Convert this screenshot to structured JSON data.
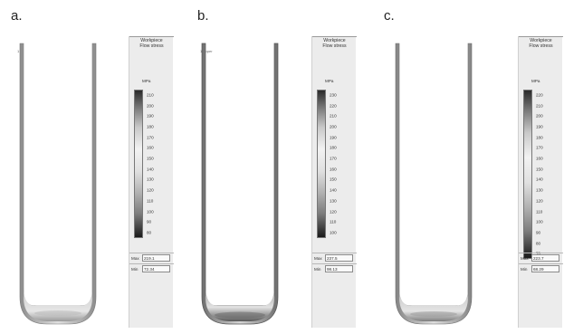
{
  "panels": [
    {
      "label": "a.",
      "corner_mark": "1",
      "legend": {
        "title": "Workpiece",
        "subtitle": "Flow stress",
        "unit": "MPa",
        "ticks": [
          "210",
          "200",
          "190",
          "180",
          "170",
          "160",
          "150",
          "140",
          "130",
          "120",
          "110",
          "100",
          "90",
          "80"
        ],
        "max_label": "Max",
        "max_value": "219.1",
        "min_label": "Min",
        "min_value": "72.34"
      }
    },
    {
      "label": "b.",
      "corner_mark": "1 upper",
      "legend": {
        "title": "Workpiece",
        "subtitle": "Flow stress",
        "unit": "MPa",
        "ticks": [
          "230",
          "220",
          "210",
          "200",
          "190",
          "180",
          "170",
          "160",
          "150",
          "140",
          "130",
          "120",
          "110",
          "100"
        ],
        "max_label": "Max",
        "max_value": "237.5",
        "min_label": "Min",
        "min_value": "98.13"
      }
    },
    {
      "label": "c.",
      "corner_mark": "",
      "legend": {
        "title": "Workpiece",
        "subtitle": "Flow stress",
        "unit": "MPa",
        "ticks": [
          "220",
          "210",
          "200",
          "190",
          "180",
          "170",
          "160",
          "150",
          "140",
          "130",
          "120",
          "110",
          "100",
          "90",
          "80",
          "70"
        ],
        "max_label": "Max",
        "max_value": "223.7",
        "min_label": "Min",
        "min_value": "68.29"
      }
    }
  ],
  "colors": {
    "vessel_wall": "#bdbdbd",
    "vessel_bottom_light": "#d9d9d9",
    "vessel_bottom_dark": "#6f6f6f",
    "legend_bg": "#ececec",
    "colorbar_top": "#2a2a2a",
    "colorbar_mid": "#f2f2f2",
    "colorbar_bottom": "#1a1a1a"
  }
}
